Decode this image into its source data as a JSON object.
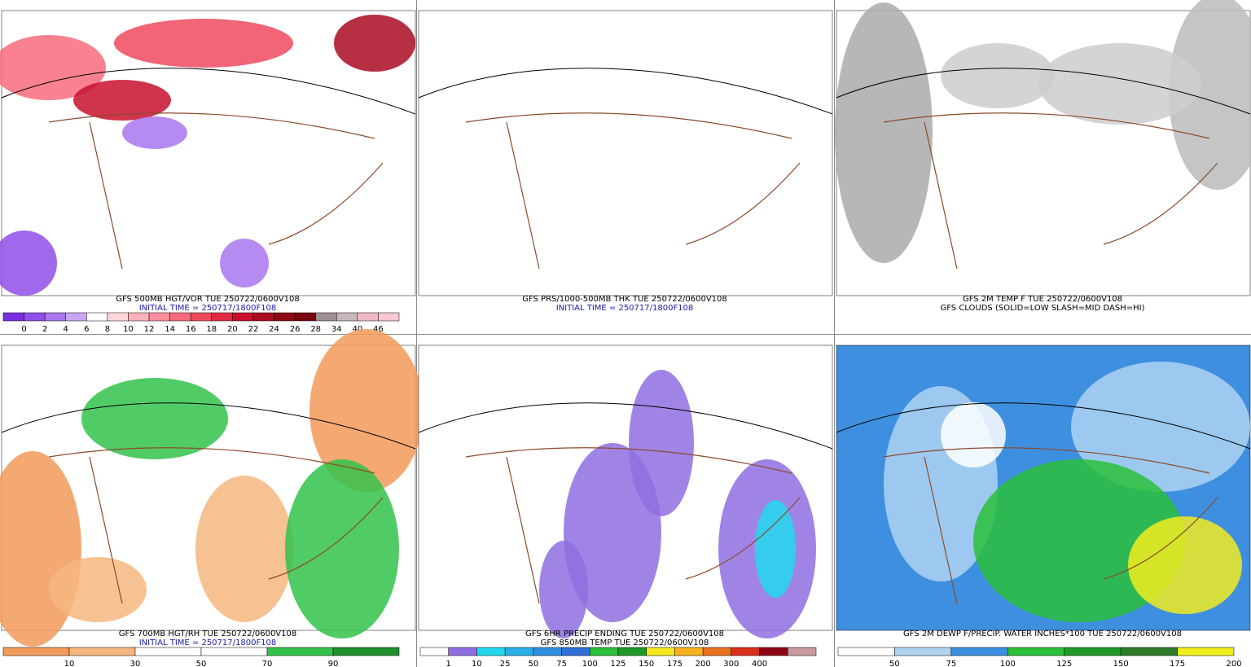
{
  "panels": [
    {
      "captions": [
        "GFS 500MB HGT/VOR TUE 250722/0600V108",
        "INITIAL TIME = 250717/1800F108"
      ],
      "colorbar": {
        "colors": [
          "#7a2fe0",
          "#8f4fe8",
          "#a877ee",
          "#c7a7f4",
          "#ffffff",
          "#ffd6da",
          "#ffb3bb",
          "#ff8f9c",
          "#f86b7c",
          "#ef4a5e",
          "#e02a44",
          "#c8102e",
          "#aa0a22",
          "#8e0616",
          "#78040e",
          "#9d8f93",
          "#c6b8bc",
          "#f2b8c3",
          "#f8c8d0"
        ],
        "labels": [
          0,
          2,
          4,
          6,
          8,
          10,
          12,
          14,
          16,
          18,
          20,
          22,
          24,
          26,
          28,
          34,
          40,
          46
        ]
      }
    },
    {
      "captions": [
        "GFS PRS/1000-500MB THK TUE 250722/0600V108",
        "INITIAL TIME = 250717/1800F108"
      ]
    },
    {
      "captions": [
        "GFS 2M TEMP F TUE 250722/0600V108",
        "GFS CLOUDS (SOLID=LOW SLASH=MID DASH=HI)"
      ]
    },
    {
      "captions": [
        "GFS 700MB HGT/RH TUE 250722/0600V108",
        "INITIAL TIME = 250717/1800F108"
      ],
      "colorbar": {
        "colors": [
          "#f29a5a",
          "#f6b77f",
          "#ffffff",
          "#ffffff",
          "#33c24a",
          "#1f8f2e"
        ],
        "labels": [
          10,
          30,
          50,
          70,
          90
        ]
      }
    },
    {
      "captions": [
        "GFS 6HR PRECIP ENDING TUE 250722/0600V108",
        "GFS 850MB TEMP TUE 250722/0600V108"
      ],
      "colorbar": {
        "colors": [
          "#ffffff",
          "#8f6fe0",
          "#22d8ee",
          "#2ab0e6",
          "#2f8fe0",
          "#2f6fd8",
          "#2bbf3a",
          "#1f9a2a",
          "#f5e81e",
          "#f5b21e",
          "#e8701e",
          "#d8301a",
          "#8e0616",
          "#c89aa0"
        ],
        "labels": [
          1,
          10,
          25,
          50,
          75,
          100,
          125,
          150,
          175,
          200,
          300,
          400
        ]
      }
    },
    {
      "captions": [
        "GFS 2M DEWP F/PRECIP. WATER INCHES*100 TUE 250722/0600V108"
      ],
      "colorbar": {
        "colors": [
          "#ffffff",
          "#aed4f2",
          "#3a8fe0",
          "#2bbf3a",
          "#1f9a2a",
          "#2f7a2a",
          "#f0ec1e"
        ],
        "labels": [
          50,
          75,
          100,
          125,
          150,
          175,
          200
        ]
      }
    }
  ]
}
